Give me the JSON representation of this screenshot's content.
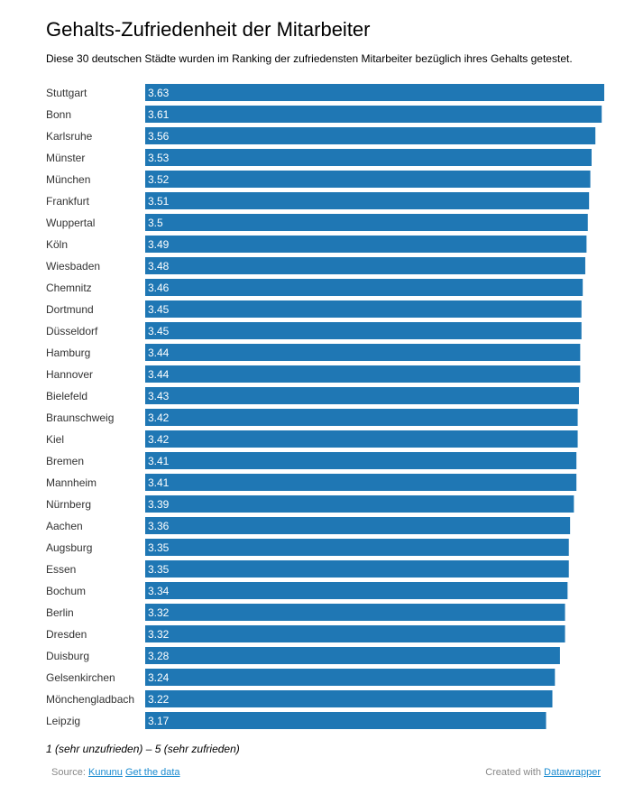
{
  "chart_data": {
    "type": "bar",
    "orientation": "horizontal",
    "title": "Gehalts-Zufriedenheit der Mitarbeiter",
    "subtitle": "Diese 30 deutschen Städte wurden im Ranking der zufriedensten Mitarbeiter bezüglich ihres Gehalts getestet.",
    "categories": [
      "Stuttgart",
      "Bonn",
      "Karlsruhe",
      "Münster",
      "München",
      "Frankfurt",
      "Wuppertal",
      "Köln",
      "Wiesbaden",
      "Chemnitz",
      "Dortmund",
      "Düsseldorf",
      "Hamburg",
      "Hannover",
      "Bielefeld",
      "Braunschweig",
      "Kiel",
      "Bremen",
      "Mannheim",
      "Nürnberg",
      "Aachen",
      "Augsburg",
      "Essen",
      "Bochum",
      "Berlin",
      "Dresden",
      "Duisburg",
      "Gelsenkirchen",
      "Mönchengladbach",
      "Leipzig"
    ],
    "values": [
      3.63,
      3.61,
      3.56,
      3.53,
      3.52,
      3.51,
      3.5,
      3.49,
      3.48,
      3.46,
      3.45,
      3.45,
      3.44,
      3.44,
      3.43,
      3.42,
      3.42,
      3.41,
      3.41,
      3.39,
      3.36,
      3.35,
      3.35,
      3.34,
      3.32,
      3.32,
      3.28,
      3.24,
      3.22,
      3.17
    ],
    "value_labels": [
      "3.63",
      "3.61",
      "3.56",
      "3.53",
      "3.52",
      "3.51",
      "3.5",
      "3.49",
      "3.48",
      "3.46",
      "3.45",
      "3.45",
      "3.44",
      "3.44",
      "3.43",
      "3.42",
      "3.42",
      "3.41",
      "3.41",
      "3.39",
      "3.36",
      "3.35",
      "3.35",
      "3.34",
      "3.32",
      "3.32",
      "3.28",
      "3.24",
      "3.22",
      "3.17"
    ],
    "xlim": [
      0,
      3.63
    ],
    "bar_color": "#1f77b4",
    "grid": false,
    "note": "1 (sehr unzufrieden) – 5 (sehr zufrieden)"
  },
  "footer": {
    "source_label": "Source:",
    "source_link": "Kununu",
    "data_link": "Get the data",
    "created_label": "Created with",
    "created_link": "Datawrapper"
  }
}
